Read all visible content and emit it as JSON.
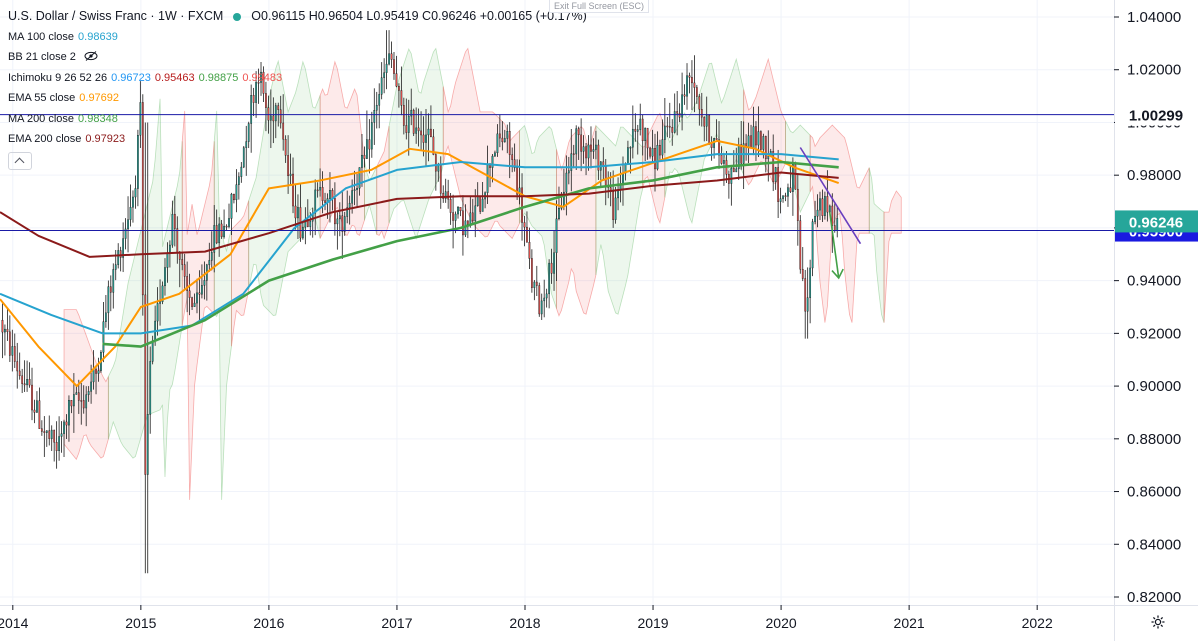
{
  "header": {
    "title": "U.S. Dollar / Swiss Franc · 1W · FXCM",
    "ohlc": "O0.96115  H0.96504  L0.95419  C0.96246  +0.00165 (+0.17%)",
    "exit_full_screen": "Exit Full Screen (ESC)"
  },
  "indicators": [
    {
      "label": "MA 100 close",
      "values": [
        "0.98639"
      ],
      "colors": [
        "#26a3cf"
      ]
    },
    {
      "label": "BB 21 close 2",
      "values": [],
      "colors": [],
      "hidden": true
    },
    {
      "label": "Ichimoku 9 26 52 26",
      "values": [
        "0.96723",
        "0.95463",
        "0.98875",
        "0.99483"
      ],
      "colors": [
        "#2196f3",
        "#b71c1c",
        "#43a047",
        "#ef5350"
      ]
    },
    {
      "label": "EMA 55 close",
      "values": [
        "0.97692"
      ],
      "colors": [
        "#ff9800"
      ]
    },
    {
      "label": "MA 200 close",
      "values": [
        "0.98348"
      ],
      "colors": [
        "#43a047"
      ]
    },
    {
      "label": "EMA 200 close",
      "values": [
        "0.97923"
      ],
      "colors": [
        "#8b1a1a"
      ]
    }
  ],
  "icons": {
    "visibility": "eye-off-icon",
    "collapse": "chevron-up-icon",
    "settings": "gear-icon"
  },
  "chart_data": {
    "type": "candlestick",
    "symbol": "USD/CHF",
    "timeframe": "1W",
    "x_range": [
      2013.9,
      2022.6
    ],
    "ylim": [
      0.815,
      1.045
    ],
    "y_ticks": [
      "1.04000",
      "1.02000",
      "1.00000",
      "0.98000",
      "0.96000",
      "0.94000",
      "0.92000",
      "0.90000",
      "0.88000",
      "0.86000",
      "0.84000",
      "0.82000"
    ],
    "x_ticks": [
      "2014",
      "2015",
      "2016",
      "2017",
      "2018",
      "2019",
      "2020",
      "2021",
      "2022"
    ],
    "last_price": 0.96246,
    "horizontal_levels": [
      {
        "value": 1.00299,
        "label": "1.00299",
        "color": "#1a1aa6"
      },
      {
        "value": 0.959,
        "label": "0.95900",
        "color": "#1a1aa6"
      }
    ],
    "price_path": [
      [
        2013.9,
        0.925
      ],
      [
        2014.05,
        0.905
      ],
      [
        2014.15,
        0.895
      ],
      [
        2014.25,
        0.882
      ],
      [
        2014.35,
        0.876
      ],
      [
        2014.45,
        0.893
      ],
      [
        2014.55,
        0.895
      ],
      [
        2014.65,
        0.905
      ],
      [
        2014.75,
        0.935
      ],
      [
        2014.85,
        0.955
      ],
      [
        2014.95,
        0.975
      ],
      [
        2015.0,
        1.005
      ],
      [
        2015.03,
        0.86
      ],
      [
        2015.07,
        0.905
      ],
      [
        2015.15,
        0.935
      ],
      [
        2015.25,
        0.965
      ],
      [
        2015.35,
        0.935
      ],
      [
        2015.45,
        0.93
      ],
      [
        2015.55,
        0.955
      ],
      [
        2015.65,
        0.96
      ],
      [
        2015.75,
        0.975
      ],
      [
        2015.85,
        1.005
      ],
      [
        2015.92,
        1.02
      ],
      [
        2016.0,
        1.0
      ],
      [
        2016.08,
        1.01
      ],
      [
        2016.15,
        0.98
      ],
      [
        2016.25,
        0.96
      ],
      [
        2016.35,
        0.97
      ],
      [
        2016.45,
        0.975
      ],
      [
        2016.55,
        0.96
      ],
      [
        2016.65,
        0.975
      ],
      [
        2016.75,
        0.985
      ],
      [
        2016.85,
        1.01
      ],
      [
        2016.95,
        1.025
      ],
      [
        2017.05,
        1.0
      ],
      [
        2017.15,
        1.0
      ],
      [
        2017.25,
        0.995
      ],
      [
        2017.35,
        0.975
      ],
      [
        2017.45,
        0.965
      ],
      [
        2017.55,
        0.96
      ],
      [
        2017.65,
        0.97
      ],
      [
        2017.75,
        0.99
      ],
      [
        2017.85,
        0.995
      ],
      [
        2017.95,
        0.975
      ],
      [
        2018.05,
        0.94
      ],
      [
        2018.12,
        0.93
      ],
      [
        2018.2,
        0.945
      ],
      [
        2018.3,
        0.975
      ],
      [
        2018.4,
        0.995
      ],
      [
        2018.5,
        0.99
      ],
      [
        2018.6,
        0.985
      ],
      [
        2018.7,
        0.965
      ],
      [
        2018.8,
        0.99
      ],
      [
        2018.9,
        1.0
      ],
      [
        2019.0,
        0.985
      ],
      [
        2019.1,
        0.995
      ],
      [
        2019.2,
        1.005
      ],
      [
        2019.3,
        1.02
      ],
      [
        2019.4,
        1.0
      ],
      [
        2019.5,
        0.99
      ],
      [
        2019.6,
        0.98
      ],
      [
        2019.7,
        0.99
      ],
      [
        2019.8,
        0.995
      ],
      [
        2019.9,
        0.99
      ],
      [
        2020.0,
        0.97
      ],
      [
        2020.1,
        0.98
      ],
      [
        2020.15,
        0.945
      ],
      [
        2020.2,
        0.925
      ],
      [
        2020.25,
        0.965
      ],
      [
        2020.3,
        0.97
      ],
      [
        2020.38,
        0.965
      ],
      [
        2020.45,
        0.962
      ]
    ],
    "trend_lines": [
      {
        "name": "",
        "from": [
          2020.15,
          0.9905
        ],
        "to": [
          2020.62,
          0.954
        ],
        "color": "#6a3fbf"
      },
      {
        "name": "",
        "from": [
          2020.38,
          0.966
        ],
        "to": [
          2020.45,
          0.941
        ],
        "color": "#43a047",
        "arrow": true
      }
    ],
    "series": [
      {
        "name": "",
        "style": "line",
        "color": "#ff9800",
        "values": [
          [
            2013.9,
            0.933
          ],
          [
            2014.2,
            0.915
          ],
          [
            2014.5,
            0.9
          ],
          [
            2014.8,
            0.915
          ],
          [
            2015.0,
            0.93
          ],
          [
            2015.3,
            0.935
          ],
          [
            2015.7,
            0.95
          ],
          [
            2016.0,
            0.975
          ],
          [
            2016.4,
            0.978
          ],
          [
            2016.8,
            0.982
          ],
          [
            2017.1,
            0.99
          ],
          [
            2017.4,
            0.988
          ],
          [
            2017.7,
            0.98
          ],
          [
            2018.0,
            0.972
          ],
          [
            2018.3,
            0.968
          ],
          [
            2018.6,
            0.978
          ],
          [
            2018.9,
            0.983
          ],
          [
            2019.2,
            0.988
          ],
          [
            2019.5,
            0.993
          ],
          [
            2019.8,
            0.99
          ],
          [
            2020.1,
            0.983
          ],
          [
            2020.45,
            0.977
          ]
        ]
      },
      {
        "name": "",
        "style": "line",
        "color": "#26a3cf",
        "values": [
          [
            2013.9,
            0.935
          ],
          [
            2014.3,
            0.927
          ],
          [
            2014.7,
            0.92
          ],
          [
            2015.0,
            0.92
          ],
          [
            2015.4,
            0.923
          ],
          [
            2015.8,
            0.935
          ],
          [
            2016.2,
            0.96
          ],
          [
            2016.6,
            0.975
          ],
          [
            2017.0,
            0.982
          ],
          [
            2017.5,
            0.985
          ],
          [
            2018.0,
            0.983
          ],
          [
            2018.5,
            0.983
          ],
          [
            2019.0,
            0.985
          ],
          [
            2019.5,
            0.988
          ],
          [
            2020.0,
            0.988
          ],
          [
            2020.45,
            0.986
          ]
        ]
      },
      {
        "name": "",
        "style": "line",
        "color": "#43a047",
        "values": [
          [
            2014.7,
            0.916
          ],
          [
            2015.0,
            0.915
          ],
          [
            2015.5,
            0.925
          ],
          [
            2016.0,
            0.94
          ],
          [
            2016.5,
            0.948
          ],
          [
            2017.0,
            0.955
          ],
          [
            2017.5,
            0.96
          ],
          [
            2018.0,
            0.968
          ],
          [
            2018.5,
            0.975
          ],
          [
            2019.0,
            0.978
          ],
          [
            2019.5,
            0.983
          ],
          [
            2020.0,
            0.985
          ],
          [
            2020.45,
            0.983
          ]
        ]
      },
      {
        "name": "",
        "style": "line",
        "color": "#8b1a1a",
        "values": [
          [
            2013.9,
            0.966
          ],
          [
            2014.2,
            0.957
          ],
          [
            2014.6,
            0.949
          ],
          [
            2015.0,
            0.95
          ],
          [
            2015.5,
            0.951
          ],
          [
            2016.0,
            0.958
          ],
          [
            2016.5,
            0.966
          ],
          [
            2017.0,
            0.971
          ],
          [
            2017.5,
            0.972
          ],
          [
            2018.0,
            0.972
          ],
          [
            2018.5,
            0.973
          ],
          [
            2019.0,
            0.976
          ],
          [
            2019.5,
            0.978
          ],
          [
            2020.0,
            0.981
          ],
          [
            2020.45,
            0.979
          ]
        ]
      }
    ]
  }
}
